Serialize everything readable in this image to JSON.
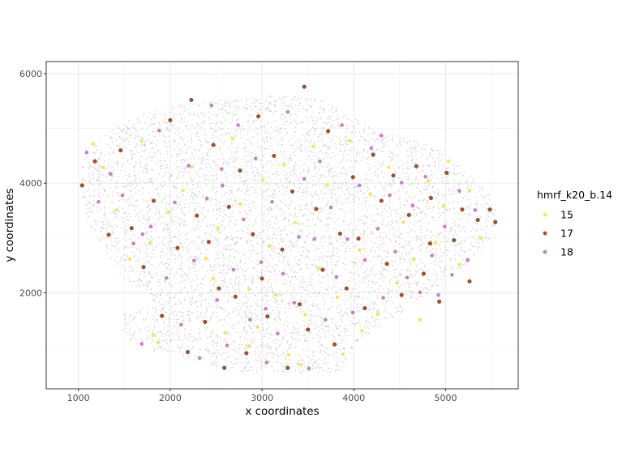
{
  "chart_data": {
    "type": "scatter",
    "xlabel": "x coordinates",
    "ylabel": "y coordinates",
    "xlim": [
      650,
      5790
    ],
    "ylim": [
      250,
      6220
    ],
    "xticks": [
      1000,
      2000,
      3000,
      4000,
      5000
    ],
    "yticks": [
      2000,
      4000,
      6000
    ],
    "grid": true,
    "legend": {
      "title": "hmrf_k20_b.14",
      "position": "right"
    },
    "background_color": "#cccccc",
    "series": [
      {
        "name": "15",
        "color": "#f7e36a",
        "points": [
          [
            1160,
            4720
          ],
          [
            1270,
            4290
          ],
          [
            1420,
            3510
          ],
          [
            1560,
            2620
          ],
          [
            1690,
            4770
          ],
          [
            1780,
            2910
          ],
          [
            1870,
            1100
          ],
          [
            1980,
            3470
          ],
          [
            2140,
            3870
          ],
          [
            2230,
            4300
          ],
          [
            2390,
            2630
          ],
          [
            2470,
            2260
          ],
          [
            2600,
            1270
          ],
          [
            2680,
            4810
          ],
          [
            2760,
            3620
          ],
          [
            2860,
            2070
          ],
          [
            2950,
            1380
          ],
          [
            3010,
            4060
          ],
          [
            3080,
            2850
          ],
          [
            3150,
            1970
          ],
          [
            3240,
            4330
          ],
          [
            3290,
            870
          ],
          [
            3360,
            3280
          ],
          [
            3470,
            1600
          ],
          [
            3560,
            4670
          ],
          [
            3620,
            2450
          ],
          [
            3710,
            3970
          ],
          [
            3820,
            1920
          ],
          [
            3880,
            880
          ],
          [
            3960,
            4770
          ],
          [
            4060,
            2780
          ],
          [
            4180,
            3800
          ],
          [
            4260,
            1610
          ],
          [
            4380,
            4290
          ],
          [
            4470,
            2180
          ],
          [
            4540,
            3290
          ],
          [
            4650,
            2610
          ],
          [
            4720,
            1510
          ],
          [
            4810,
            4040
          ],
          [
            4890,
            2910
          ],
          [
            4980,
            3590
          ],
          [
            5030,
            4400
          ],
          [
            5150,
            2520
          ],
          [
            5260,
            3870
          ],
          [
            5380,
            3000
          ],
          [
            1820,
            1230
          ],
          [
            2860,
            1030
          ],
          [
            3420,
            690
          ],
          [
            4090,
            1310
          ],
          [
            2520,
            3180
          ]
        ]
      },
      {
        "name": "17",
        "color": "#a0522d",
        "points": [
          [
            1040,
            3960
          ],
          [
            1180,
            4400
          ],
          [
            1330,
            3060
          ],
          [
            1460,
            4600
          ],
          [
            1580,
            3180
          ],
          [
            1710,
            2470
          ],
          [
            1820,
            3680
          ],
          [
            1910,
            1580
          ],
          [
            2000,
            5150
          ],
          [
            2080,
            2820
          ],
          [
            2190,
            920
          ],
          [
            2230,
            5520
          ],
          [
            2290,
            3410
          ],
          [
            2380,
            1470
          ],
          [
            2470,
            4700
          ],
          [
            2530,
            2080
          ],
          [
            2590,
            630
          ],
          [
            2640,
            3570
          ],
          [
            2710,
            1930
          ],
          [
            2760,
            4230
          ],
          [
            2830,
            900
          ],
          [
            2900,
            3070
          ],
          [
            2960,
            5220
          ],
          [
            3000,
            2260
          ],
          [
            3060,
            1570
          ],
          [
            3130,
            4500
          ],
          [
            3220,
            2790
          ],
          [
            3280,
            630
          ],
          [
            3330,
            3850
          ],
          [
            3410,
            1790
          ],
          [
            3460,
            5760
          ],
          [
            3500,
            1330
          ],
          [
            3590,
            3530
          ],
          [
            3660,
            2420
          ],
          [
            3720,
            4950
          ],
          [
            3790,
            1060
          ],
          [
            3850,
            3080
          ],
          [
            3920,
            2080
          ],
          [
            3990,
            4110
          ],
          [
            4050,
            2990
          ],
          [
            4120,
            1720
          ],
          [
            4210,
            4520
          ],
          [
            4300,
            3680
          ],
          [
            4360,
            2530
          ],
          [
            4430,
            4140
          ],
          [
            4520,
            1960
          ],
          [
            4600,
            3420
          ],
          [
            4680,
            4310
          ],
          [
            4760,
            2350
          ],
          [
            4840,
            3730
          ],
          [
            4930,
            1840
          ],
          [
            5010,
            4190
          ],
          [
            5090,
            2960
          ],
          [
            5180,
            3520
          ],
          [
            5260,
            2210
          ],
          [
            5350,
            3330
          ],
          [
            5480,
            3520
          ],
          [
            5540,
            3290
          ],
          [
            4830,
            2900
          ],
          [
            2420,
            2930
          ]
        ]
      },
      {
        "name": "18",
        "color": "#c47fc9",
        "points": [
          [
            1090,
            4560
          ],
          [
            1220,
            3660
          ],
          [
            1350,
            4170
          ],
          [
            1480,
            3780
          ],
          [
            1600,
            2900
          ],
          [
            1690,
            1070
          ],
          [
            1790,
            3210
          ],
          [
            1880,
            4960
          ],
          [
            1960,
            2270
          ],
          [
            2050,
            3650
          ],
          [
            2120,
            1420
          ],
          [
            2200,
            4320
          ],
          [
            2260,
            2590
          ],
          [
            2320,
            810
          ],
          [
            2400,
            3720
          ],
          [
            2450,
            5420
          ],
          [
            2510,
            1870
          ],
          [
            2570,
            3960
          ],
          [
            2620,
            1040
          ],
          [
            2690,
            2420
          ],
          [
            2740,
            5060
          ],
          [
            2800,
            3340
          ],
          [
            2870,
            1510
          ],
          [
            2930,
            4450
          ],
          [
            2990,
            2560
          ],
          [
            3050,
            730
          ],
          [
            3110,
            3660
          ],
          [
            3170,
            1260
          ],
          [
            3230,
            2350
          ],
          [
            3280,
            5300
          ],
          [
            3350,
            1820
          ],
          [
            3400,
            3020
          ],
          [
            3460,
            4080
          ],
          [
            3510,
            620
          ],
          [
            3570,
            2980
          ],
          [
            3630,
            4400
          ],
          [
            3690,
            1510
          ],
          [
            3750,
            3560
          ],
          [
            3810,
            2290
          ],
          [
            3870,
            5060
          ],
          [
            3930,
            2980
          ],
          [
            3990,
            1640
          ],
          [
            4060,
            3960
          ],
          [
            4120,
            2600
          ],
          [
            4190,
            4640
          ],
          [
            4260,
            3170
          ],
          [
            4320,
            1910
          ],
          [
            4390,
            3780
          ],
          [
            4450,
            2750
          ],
          [
            4520,
            4010
          ],
          [
            4580,
            2280
          ],
          [
            4640,
            3590
          ],
          [
            4720,
            2010
          ],
          [
            4780,
            4120
          ],
          [
            4850,
            2680
          ],
          [
            4920,
            1960
          ],
          [
            4990,
            3210
          ],
          [
            5070,
            2330
          ],
          [
            5150,
            3860
          ],
          [
            5240,
            2600
          ],
          [
            5320,
            3510
          ],
          [
            1700,
            3070
          ],
          [
            3040,
            1710
          ],
          [
            2560,
            4260
          ],
          [
            4300,
            4870
          ]
        ]
      }
    ]
  }
}
